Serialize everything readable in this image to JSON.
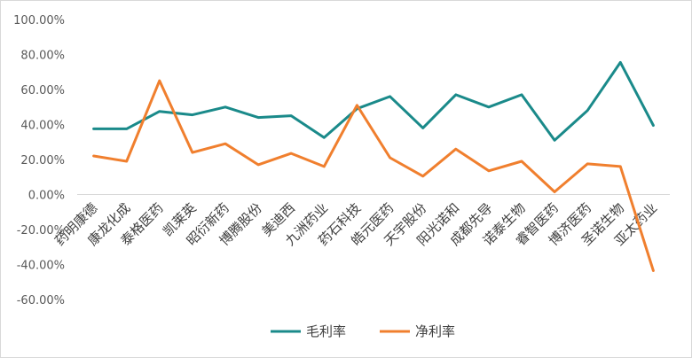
{
  "chart_data": {
    "type": "line",
    "categories": [
      "药明康德",
      "康龙化成",
      "泰格医药",
      "凯莱英",
      "昭衍新药",
      "博腾股份",
      "美迪西",
      "九洲药业",
      "药石科技",
      "皓元医药",
      "天宇股份",
      "阳光诺和",
      "成都先导",
      "诺泰生物",
      "睿智医药",
      "博济医药",
      "圣诺生物",
      "亚太药业"
    ],
    "series": [
      {
        "name": "毛利率",
        "color": "#1a8a8a",
        "values": [
          37.5,
          37.5,
          47.5,
          45.5,
          50.0,
          44.0,
          45.0,
          32.5,
          49.0,
          56.0,
          38.0,
          57.0,
          50.0,
          57.0,
          31.0,
          48.0,
          75.5,
          39.5
        ]
      },
      {
        "name": "净利率",
        "color": "#f07f2e",
        "values": [
          22.0,
          19.0,
          65.0,
          24.0,
          29.0,
          17.0,
          23.5,
          16.0,
          51.0,
          21.0,
          10.5,
          26.0,
          13.5,
          19.0,
          1.5,
          17.5,
          16.0,
          -43.5
        ]
      }
    ],
    "yticks": [
      "100.00%",
      "80.00%",
      "60.00%",
      "40.00%",
      "20.00%",
      "0.00%",
      "-20.00%",
      "-40.00%",
      "-60.00%"
    ],
    "ylim": [
      -60,
      100
    ],
    "title": "",
    "xlabel": "",
    "ylabel": "",
    "grid": false,
    "legend": "bottom"
  }
}
